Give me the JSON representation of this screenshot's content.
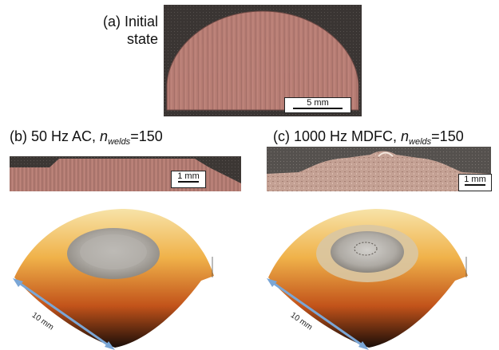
{
  "panel_a": {
    "label": "(a) Initial",
    "label2": "state",
    "scalebar": "5 mm"
  },
  "panel_b": {
    "label_prefix": "(b) 50 Hz AC, ",
    "n": "n",
    "sub": "welds",
    "label_suffix": "=150",
    "scalebar": "1 mm"
  },
  "panel_c": {
    "label_prefix": "(c) 1000 Hz MDFC, ",
    "n": "n",
    "sub": "welds",
    "label_suffix": "=150",
    "scalebar": "1 mm"
  },
  "surface_left": {
    "dimension": "10 mm"
  },
  "surface_right": {
    "dimension": "10 mm"
  },
  "colors": {
    "copper": "#b98078",
    "dark": "#3a2f2c",
    "arrow": "#7aa6d6"
  }
}
